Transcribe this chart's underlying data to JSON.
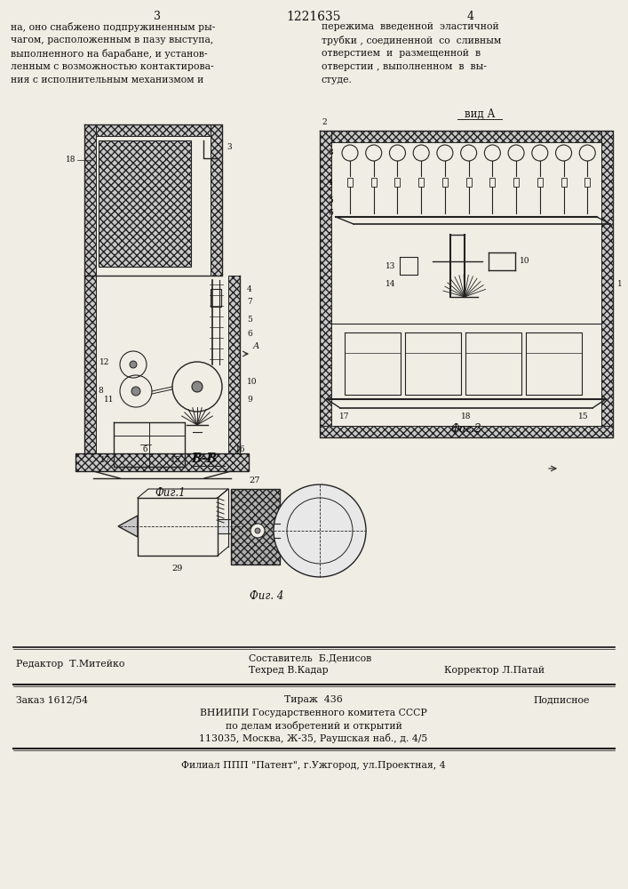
{
  "bg_color": "#f0ede4",
  "page_number_left": "3",
  "page_number_center": "1221635",
  "page_number_right": "4",
  "text_col1_lines": [
    "на, оно снабжено подпружиненным ры-",
    "чагом, расположенным в пазу выступа,",
    "выполненного на барабане, и установ-",
    "ленным с возможностью контактирова-",
    "ния с исполнительным механизмом и"
  ],
  "text_col2_lines": [
    "пережима  введенной  эластичной",
    "трубки , соединенной  со  сливным",
    "отверстием  и  размещенной  в",
    "отверстии , выполненном  в  вы-",
    "студе."
  ],
  "vida_label": "вид А",
  "fig1_label": "Фиг.1",
  "fig2_label": "Фиг.2",
  "fig4_label": "Фиг. 4",
  "bb_label": "В-В",
  "editor_line": "Редактор  Т.Митейко",
  "sostavitel_line": "Составитель  Б.Денисов",
  "tekhred_line": "Техред В.Кадар",
  "korrektor_line": "Корректор Л.Патай",
  "zakaz_line": "Заказ 1612/54",
  "tirazh_line": "Тираж  436",
  "podpisnoe_line": "Подписное",
  "vniiipi_line1": "ВНИИПИ Государственного комитета СССР",
  "vniiipi_line2": "по делам изобретений и открытий",
  "vniiipi_line3": "113035, Москва, Ж-35, Раушская наб., д. 4/5",
  "filial_line": "Филиал ППП \"Патент\", г.Ужгород, ул.Проектная, 4",
  "text_color": "#111111",
  "line_color": "#111111",
  "drawing_color": "#222222",
  "hatch_color": "#555555"
}
